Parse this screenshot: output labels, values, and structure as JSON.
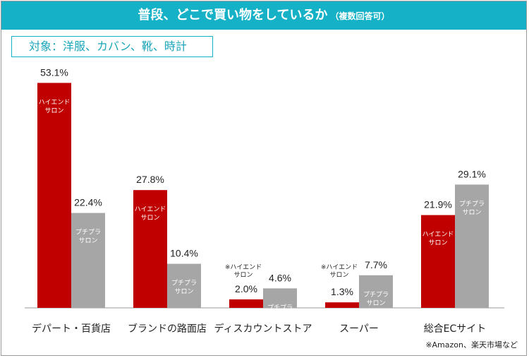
{
  "title": {
    "main": "普段、どこで買い物をしているか",
    "sub": "（複数回答可）"
  },
  "target_label": "対象：洋服、カバン、靴、時計",
  "footnote": "※Amazon、楽天市場など",
  "colors": {
    "accent": "#14b1c7",
    "high_end": "#c00000",
    "puchipura": "#a6a6a6"
  },
  "chart_data": {
    "type": "bar",
    "title": "普段、どこで買い物をしているか",
    "categories": [
      "デパート・百貨店",
      "ブランドの路面店",
      "ディスカウントストア",
      "スーパー",
      "総合ECサイト"
    ],
    "series": [
      {
        "name": "ハイエンドサロン",
        "values": [
          53.1,
          27.8,
          2.0,
          1.3,
          21.9
        ]
      },
      {
        "name": "プチプラサロン",
        "values": [
          22.4,
          10.4,
          4.6,
          7.7,
          29.1
        ]
      }
    ],
    "value_labels": [
      [
        "53.1%",
        "27.8%",
        "2.0%",
        "1.3%",
        "21.9%"
      ],
      [
        "22.4%",
        "10.4%",
        "4.6%",
        "7.7%",
        "29.1%"
      ]
    ],
    "bar_text": [
      [
        "ハイエンド\nサロン",
        "ハイエンド\nサロン",
        "※ハイエンド\nサロン",
        "※ハイエンド\nサロン",
        "ハイエンド\nサロン"
      ],
      [
        "プチプラ\nサロン",
        "プチプラ\nサロン",
        "プチプラ\nサロン",
        "プチプラ\nサロン",
        "プチプラ\nサロン"
      ]
    ],
    "ylim": [
      0,
      60
    ],
    "grid": false,
    "legend": "none"
  }
}
